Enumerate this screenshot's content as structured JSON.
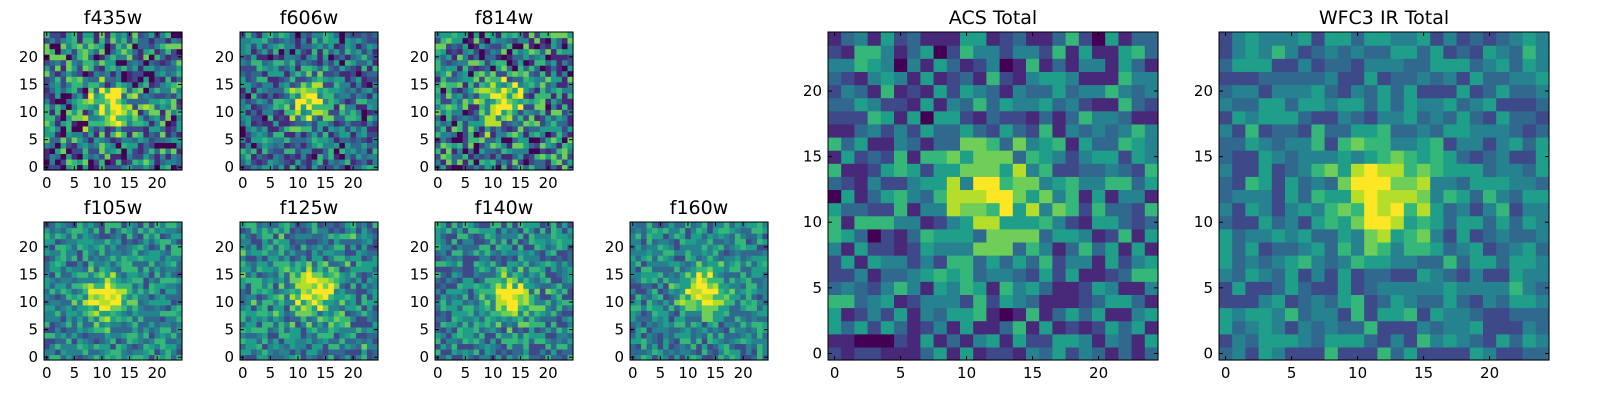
{
  "chart_data": {
    "type": "heatmap",
    "colormap": "viridis",
    "grid": false,
    "panels": [
      {
        "title": "f435w",
        "xlim": [
          0,
          24
        ],
        "ylim": [
          0,
          24
        ],
        "xticks": [
          "0",
          "5",
          "10",
          "15",
          "20"
        ],
        "yticks": [
          "0",
          "5",
          "10",
          "15",
          "20"
        ],
        "peak": [
          12,
          11
        ],
        "noise": 0.78,
        "bias": 0.52,
        "seed": 11
      },
      {
        "title": "f606w",
        "xlim": [
          0,
          24
        ],
        "ylim": [
          0,
          24
        ],
        "xticks": [
          "0",
          "5",
          "10",
          "15",
          "20"
        ],
        "yticks": [
          "0",
          "5",
          "10",
          "15",
          "20"
        ],
        "peak": [
          12,
          12
        ],
        "noise": 0.6,
        "bias": 0.5,
        "seed": 23
      },
      {
        "title": "f814w",
        "xlim": [
          0,
          24
        ],
        "ylim": [
          0,
          24
        ],
        "xticks": [
          "0",
          "5",
          "10",
          "15",
          "20"
        ],
        "yticks": [
          "0",
          "5",
          "10",
          "15",
          "20"
        ],
        "peak": [
          12,
          12
        ],
        "noise": 0.75,
        "bias": 0.55,
        "seed": 37
      },
      {
        "title": "f105w",
        "xlim": [
          0,
          24
        ],
        "ylim": [
          0,
          24
        ],
        "xticks": [
          "0",
          "5",
          "10",
          "15",
          "20"
        ],
        "yticks": [
          "0",
          "5",
          "10",
          "15",
          "20"
        ],
        "peak": [
          11,
          11
        ],
        "noise": 0.45,
        "bias": 0.62,
        "seed": 41
      },
      {
        "title": "f125w",
        "xlim": [
          0,
          24
        ],
        "ylim": [
          0,
          24
        ],
        "xticks": [
          "0",
          "5",
          "10",
          "15",
          "20"
        ],
        "yticks": [
          "0",
          "5",
          "10",
          "15",
          "20"
        ],
        "peak": [
          13,
          12
        ],
        "noise": 0.5,
        "bias": 0.62,
        "seed": 53
      },
      {
        "title": "f140w",
        "xlim": [
          0,
          24
        ],
        "ylim": [
          0,
          24
        ],
        "xticks": [
          "0",
          "5",
          "10",
          "15",
          "20"
        ],
        "yticks": [
          "0",
          "5",
          "10",
          "15",
          "20"
        ],
        "peak": [
          13,
          11
        ],
        "noise": 0.5,
        "bias": 0.6,
        "seed": 67
      },
      {
        "title": "f160w",
        "xlim": [
          0,
          24
        ],
        "ylim": [
          0,
          24
        ],
        "xticks": [
          "0",
          "5",
          "10",
          "15",
          "20"
        ],
        "yticks": [
          "0",
          "5",
          "10",
          "15",
          "20"
        ],
        "peak": [
          13,
          12
        ],
        "noise": 0.45,
        "bias": 0.62,
        "seed": 79
      },
      {
        "title": "ACS Total",
        "xlim": [
          0,
          24
        ],
        "ylim": [
          0,
          24
        ],
        "xticks": [
          "0",
          "5",
          "10",
          "15",
          "20"
        ],
        "yticks": [
          "0",
          "5",
          "10",
          "15",
          "20"
        ],
        "peak": [
          12,
          12
        ],
        "noise": 0.55,
        "bias": 0.48,
        "seed": 97
      },
      {
        "title": "WFC3 IR Total",
        "xlim": [
          0,
          24
        ],
        "ylim": [
          0,
          24
        ],
        "xticks": [
          "0",
          "5",
          "10",
          "15",
          "20"
        ],
        "yticks": [
          "0",
          "5",
          "10",
          "15",
          "20"
        ],
        "peak": [
          12,
          12
        ],
        "noise": 0.4,
        "bias": 0.55,
        "seed": 113
      }
    ]
  },
  "colors": {
    "viridis": [
      "#440154",
      "#482878",
      "#3e4989",
      "#31688e",
      "#26828e",
      "#1f9e89",
      "#35b779",
      "#6ece58",
      "#b5de2b",
      "#fde725"
    ],
    "frame": "#000000",
    "background": "#ffffff"
  }
}
